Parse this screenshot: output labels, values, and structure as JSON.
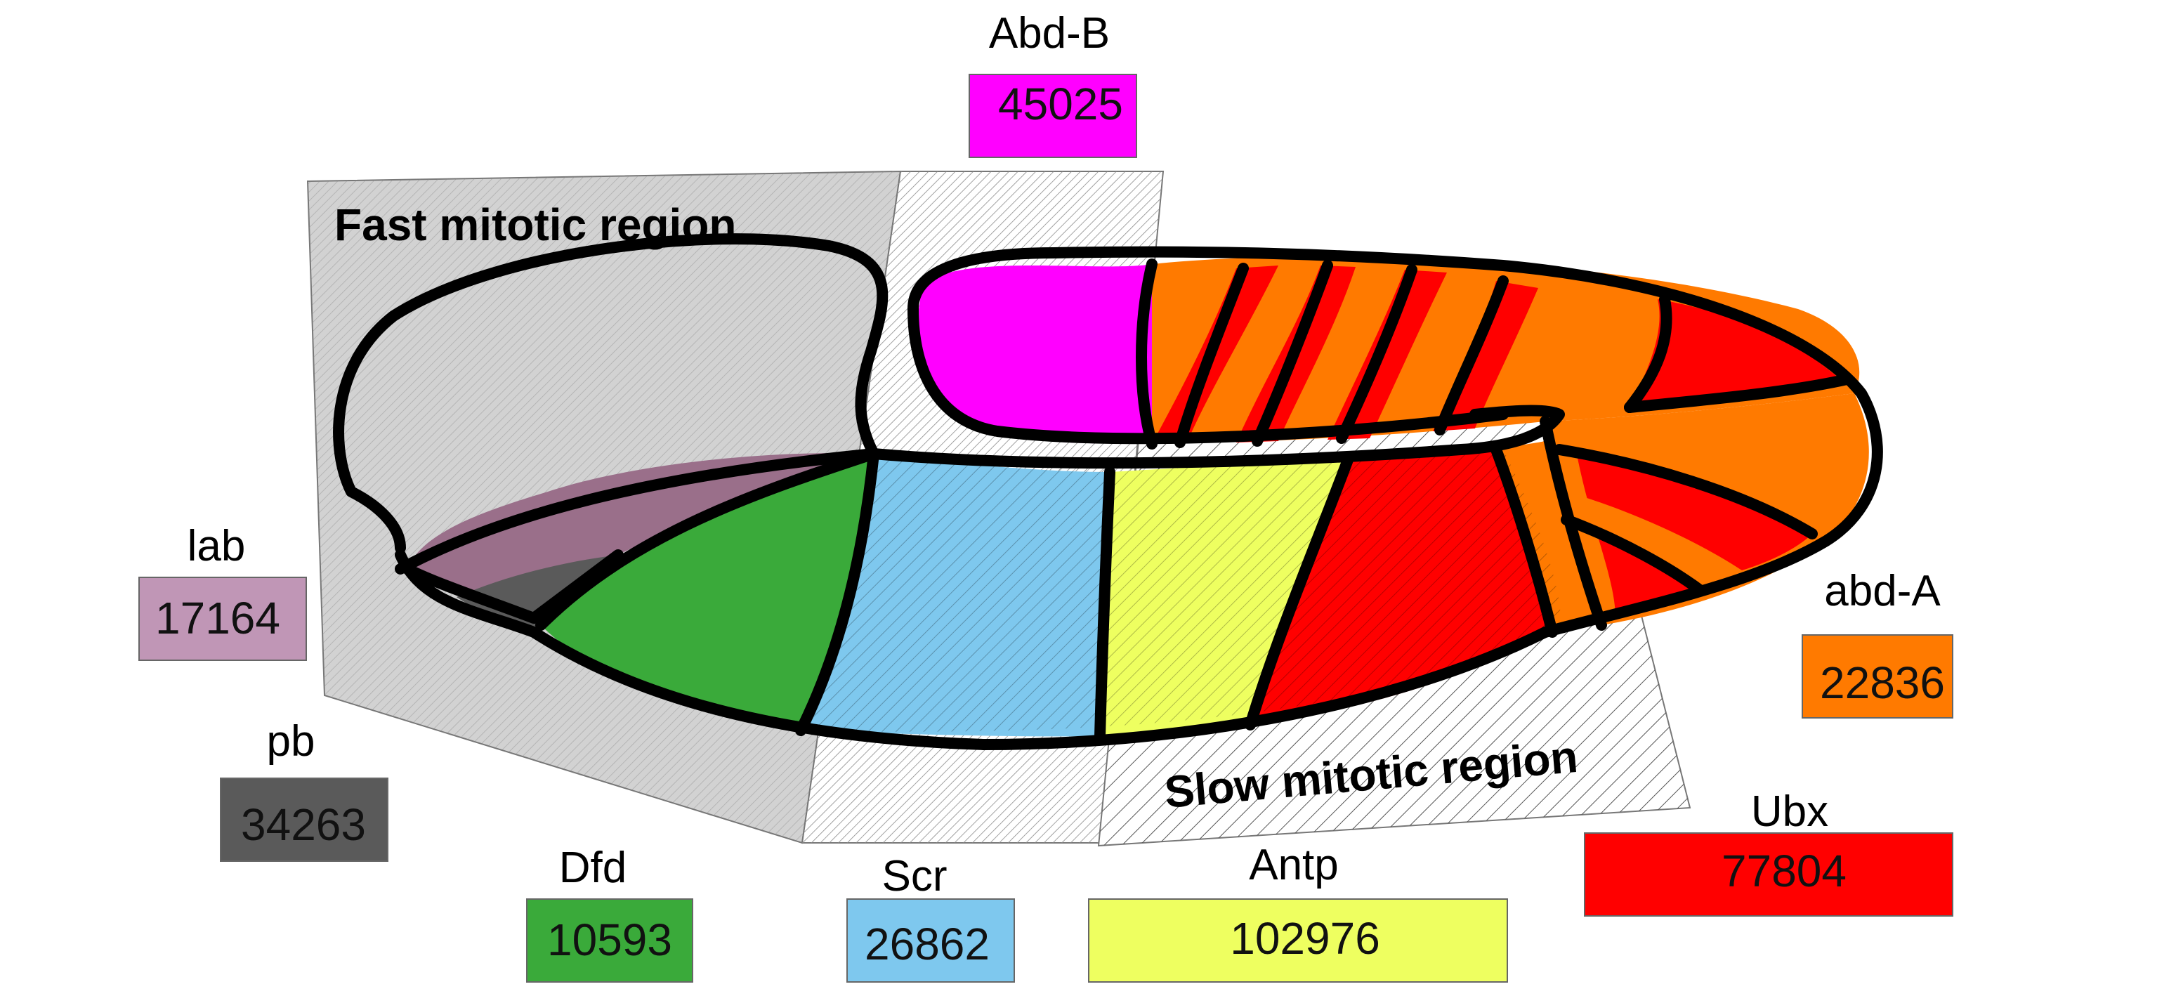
{
  "regions": {
    "fast": "Fast mitotic region",
    "slow": "Slow mitotic region"
  },
  "genes": [
    {
      "id": "abd-b",
      "name": "Abd-B",
      "count": "45025",
      "color": "#ff00ff"
    },
    {
      "id": "lab",
      "name": "lab",
      "count": "17164",
      "color": "#c096b6"
    },
    {
      "id": "pb",
      "name": "pb",
      "count": "34263",
      "color": "#5a5a5a"
    },
    {
      "id": "dfd",
      "name": "Dfd",
      "count": "10593",
      "color": "#3aaa3a"
    },
    {
      "id": "scr",
      "name": "Scr",
      "count": "26862",
      "color": "#7ec8ee"
    },
    {
      "id": "antp",
      "name": "Antp",
      "count": "102976",
      "color": "#eeff60"
    },
    {
      "id": "ubx",
      "name": "Ubx",
      "count": "77804",
      "color": "#ff0000"
    },
    {
      "id": "abd-a",
      "name": "abd-A",
      "count": "22836",
      "color": "#ff7a00"
    }
  ]
}
